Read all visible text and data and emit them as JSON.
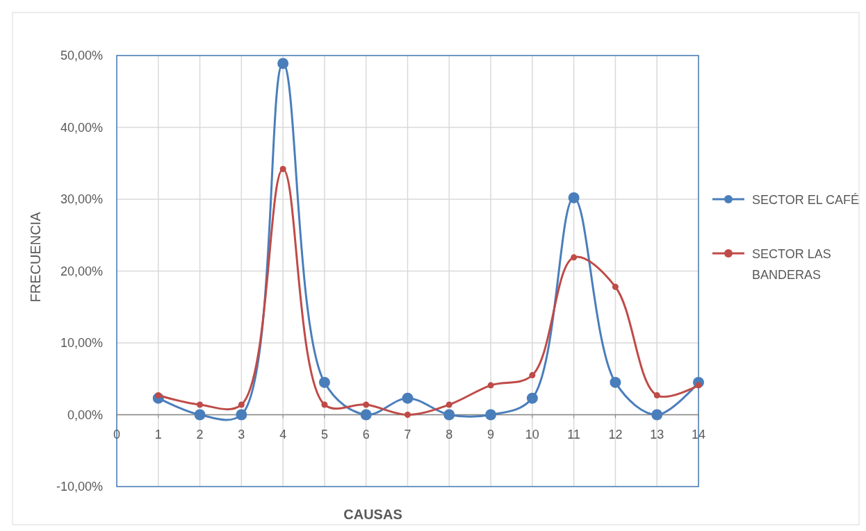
{
  "chart_data": {
    "type": "line",
    "xlabel": "CAUSAS",
    "ylabel": "FRECUENCIA",
    "x": [
      1,
      2,
      3,
      4,
      5,
      6,
      7,
      8,
      9,
      10,
      11,
      12,
      13,
      14
    ],
    "series": [
      {
        "name": "SECTOR EL CAFÉ",
        "color": "#4a7ebb",
        "values": [
          2.3,
          0,
          0,
          48.9,
          4.5,
          0,
          2.3,
          0,
          0,
          2.3,
          30.2,
          4.5,
          0,
          4.5
        ]
      },
      {
        "name": "SECTOR LAS BANDERAS",
        "color": "#be4b48",
        "values": [
          2.7,
          1.4,
          1.4,
          34.2,
          1.4,
          1.4,
          0,
          1.4,
          4.1,
          5.5,
          21.9,
          17.8,
          2.7,
          4.1
        ]
      }
    ],
    "xlim": [
      0,
      14
    ],
    "xticks": [
      0,
      1,
      2,
      3,
      4,
      5,
      6,
      7,
      8,
      9,
      10,
      11,
      12,
      13,
      14
    ],
    "ylim": [
      -10,
      50
    ],
    "yticks": [
      {
        "value": -10,
        "label": "-10,00%"
      },
      {
        "value": 0,
        "label": "0,00%"
      },
      {
        "value": 10,
        "label": "10,00%"
      },
      {
        "value": 20,
        "label": "20,00%"
      },
      {
        "value": 30,
        "label": "30,00%"
      },
      {
        "value": 40,
        "label": "40,00%"
      },
      {
        "value": 50,
        "label": "50,00%"
      }
    ],
    "grid": true,
    "legend": "right",
    "marker": "circle",
    "line_style": "solid"
  }
}
